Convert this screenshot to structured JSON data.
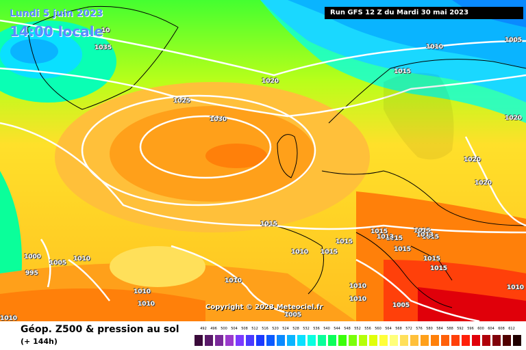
{
  "title_date": "Lundi 5 juin 2023",
  "title_time": "14:00 locale",
  "run_info": "Run GFS 12 Z du Mardi 30 mai 2023",
  "copyright": "Copyright © 2023 Meteociel.fr",
  "footer_title": "Géop. Z500 & pression au sol",
  "footer_sub": "(+ 144h)",
  "isobars": [
    "10",
    "1035",
    "1020",
    "1015",
    "1010",
    "1005",
    "1025",
    "1030",
    "1020",
    "1020",
    "1020",
    "1015",
    "1000",
    "995",
    "1005",
    "1010",
    "1010",
    "1010",
    "1010",
    "1015",
    "1015",
    "1015",
    "1015",
    "1015",
    "1013",
    "1015",
    "1015",
    "1013",
    "1010",
    "1010",
    "1005",
    "1010",
    "1005",
    "1015",
    "1010",
    "1010",
    "1015"
  ],
  "legend": {
    "labels": [
      "492",
      "496",
      "500",
      "504",
      "508",
      "512",
      "516",
      "520",
      "524",
      "528",
      "532",
      "536",
      "540",
      "544",
      "548",
      "552",
      "556",
      "560",
      "564",
      "568",
      "572",
      "576",
      "580",
      "584",
      "588",
      "592",
      "596",
      "600",
      "604",
      "608",
      "612"
    ],
    "colors": [
      "#3a0a3a",
      "#5a1a6a",
      "#7a2a9a",
      "#9a3acc",
      "#7a3aff",
      "#4a3aff",
      "#1a3aff",
      "#0a5aff",
      "#0a8aff",
      "#0ab4ff",
      "#0ae0ff",
      "#0affe0",
      "#0aff9a",
      "#0aff5a",
      "#3aff0a",
      "#7aff0a",
      "#b4ff0a",
      "#e0ff0a",
      "#ffff3a",
      "#ffff7a",
      "#ffe05a",
      "#ffc03a",
      "#ffa01a",
      "#ff800a",
      "#ff600a",
      "#ff400a",
      "#ff200a",
      "#e0000a",
      "#b0000a",
      "#80000a",
      "#500000",
      "#200000"
    ]
  }
}
